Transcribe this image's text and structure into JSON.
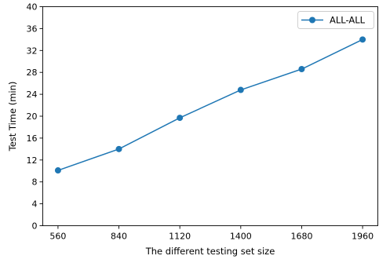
{
  "chart_data": {
    "type": "line",
    "title": "",
    "xlabel": "The different testing set size",
    "ylabel": "Test Time (min)",
    "x": [
      560,
      840,
      1120,
      1400,
      1680,
      1960
    ],
    "xticks": [
      "560",
      "840",
      "1120",
      "1400",
      "1680",
      "1960"
    ],
    "xlim": [
      490,
      2030
    ],
    "ylim": [
      0,
      40
    ],
    "yticks": [
      "0",
      "4",
      "8",
      "12",
      "16",
      "20",
      "24",
      "28",
      "32",
      "36",
      "40"
    ],
    "series": [
      {
        "name": "ALL-ALL",
        "color": "#1f77b4",
        "marker": "circle",
        "values": [
          10.1,
          14.0,
          19.7,
          24.8,
          28.6,
          34.0
        ]
      }
    ],
    "grid": false,
    "legend_position": "top-right"
  }
}
